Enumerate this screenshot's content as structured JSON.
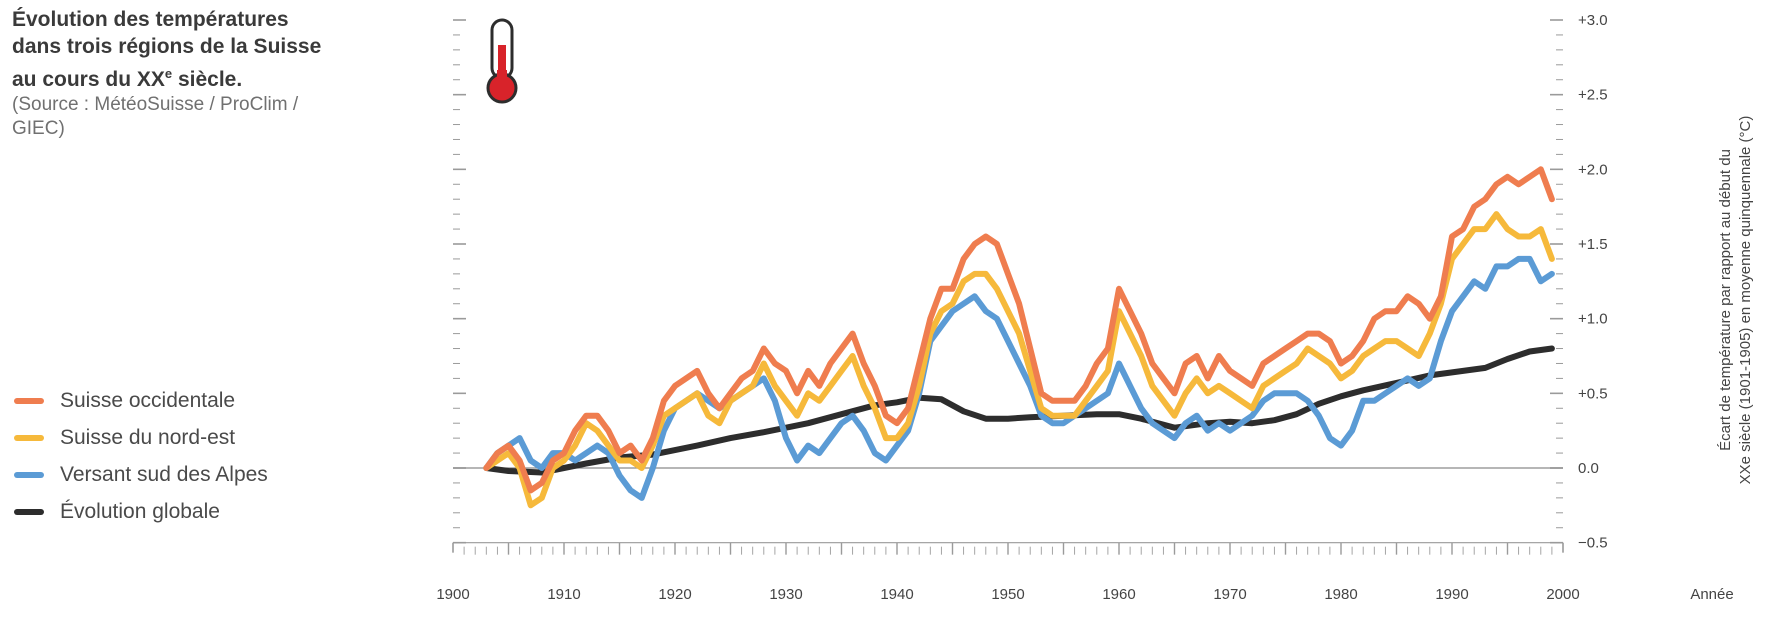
{
  "caption": {
    "title_line1": "Évolution des températures",
    "title_line2": "dans trois régions de la Suisse",
    "title_line3_pre": "au cours du XX",
    "title_line3_sup": "e",
    "title_line3_post": " siècle.",
    "source_line1": "(Source : MétéoSuisse / ProClim /",
    "source_line2": "GIEC)"
  },
  "colors": {
    "occidentale": "#ef7d4f",
    "nord_est": "#f6b93b",
    "sud_alpes": "#5b9bd5",
    "globale": "#2d2d2d",
    "axis": "#9a9a9a"
  },
  "icon": "thermometer-icon",
  "chart_data": {
    "type": "line",
    "title": "",
    "xlabel": "Année",
    "ylabel_line1": "Écart de température par rapport au début du",
    "ylabel_line2": "XXe siècle (1901-1905) en moyenne quinquennale (°C)",
    "xlim": [
      1900,
      2000
    ],
    "ylim": [
      -0.5,
      3.0
    ],
    "x_ticks": [
      1900,
      1910,
      1920,
      1930,
      1940,
      1950,
      1960,
      1970,
      1980,
      1990,
      2000
    ],
    "x_tick_labels": [
      "1900",
      "1910",
      "1920",
      "1930",
      "1940",
      "1950",
      "1960",
      "1970",
      "1980",
      "1990",
      "2000"
    ],
    "y_ticks": [
      -0.5,
      0.0,
      0.5,
      1.0,
      1.5,
      2.0,
      2.5,
      3.0
    ],
    "y_tick_labels": [
      "−0.5",
      "0.0",
      "+0.5",
      "+1.0",
      "+1.5",
      "+2.0",
      "+2.5",
      "+3.0"
    ],
    "legend_position": "bottom-left",
    "series": [
      {
        "name": "Suisse occidentale",
        "color": "#ef7d4f",
        "x": [
          1903,
          1904,
          1905,
          1906,
          1907,
          1908,
          1909,
          1910,
          1911,
          1912,
          1913,
          1914,
          1915,
          1916,
          1917,
          1918,
          1919,
          1920,
          1921,
          1922,
          1923,
          1924,
          1925,
          1926,
          1927,
          1928,
          1929,
          1930,
          1931,
          1932,
          1933,
          1934,
          1935,
          1936,
          1937,
          1938,
          1939,
          1940,
          1941,
          1942,
          1943,
          1944,
          1945,
          1946,
          1947,
          1948,
          1949,
          1950,
          1951,
          1952,
          1953,
          1954,
          1955,
          1956,
          1957,
          1958,
          1959,
          1960,
          1961,
          1962,
          1963,
          1964,
          1965,
          1966,
          1967,
          1968,
          1969,
          1970,
          1971,
          1972,
          1973,
          1974,
          1975,
          1976,
          1977,
          1978,
          1979,
          1980,
          1981,
          1982,
          1983,
          1984,
          1985,
          1986,
          1987,
          1988,
          1989,
          1990,
          1991,
          1992,
          1993,
          1994,
          1995,
          1996,
          1997,
          1998,
          1999
        ],
        "values": [
          0.0,
          0.1,
          0.15,
          0.05,
          -0.15,
          -0.1,
          0.05,
          0.1,
          0.25,
          0.35,
          0.35,
          0.25,
          0.1,
          0.15,
          0.05,
          0.2,
          0.45,
          0.55,
          0.6,
          0.65,
          0.5,
          0.4,
          0.5,
          0.6,
          0.65,
          0.8,
          0.7,
          0.65,
          0.5,
          0.65,
          0.55,
          0.7,
          0.8,
          0.9,
          0.7,
          0.55,
          0.35,
          0.3,
          0.4,
          0.7,
          1.0,
          1.2,
          1.2,
          1.4,
          1.5,
          1.55,
          1.5,
          1.3,
          1.1,
          0.8,
          0.5,
          0.45,
          0.45,
          0.45,
          0.55,
          0.7,
          0.8,
          1.2,
          1.05,
          0.9,
          0.7,
          0.6,
          0.5,
          0.7,
          0.75,
          0.6,
          0.75,
          0.65,
          0.6,
          0.55,
          0.7,
          0.75,
          0.8,
          0.85,
          0.9,
          0.9,
          0.85,
          0.7,
          0.75,
          0.85,
          1.0,
          1.05,
          1.05,
          1.15,
          1.1,
          1.0,
          1.15,
          1.55,
          1.6,
          1.75,
          1.8,
          1.9,
          1.95,
          1.9,
          1.95,
          2.0,
          1.8
        ]
      },
      {
        "name": "Suisse du nord-est",
        "color": "#f6b93b",
        "x": [
          1903,
          1904,
          1905,
          1906,
          1907,
          1908,
          1909,
          1910,
          1911,
          1912,
          1913,
          1914,
          1915,
          1916,
          1917,
          1918,
          1919,
          1920,
          1921,
          1922,
          1923,
          1924,
          1925,
          1926,
          1927,
          1928,
          1929,
          1930,
          1931,
          1932,
          1933,
          1934,
          1935,
          1936,
          1937,
          1938,
          1939,
          1940,
          1941,
          1942,
          1943,
          1944,
          1945,
          1946,
          1947,
          1948,
          1949,
          1950,
          1951,
          1952,
          1953,
          1954,
          1955,
          1956,
          1957,
          1958,
          1959,
          1960,
          1961,
          1962,
          1963,
          1964,
          1965,
          1966,
          1967,
          1968,
          1969,
          1970,
          1971,
          1972,
          1973,
          1974,
          1975,
          1976,
          1977,
          1978,
          1979,
          1980,
          1981,
          1982,
          1983,
          1984,
          1985,
          1986,
          1987,
          1988,
          1989,
          1990,
          1991,
          1992,
          1993,
          1994,
          1995,
          1996,
          1997,
          1998,
          1999
        ],
        "values": [
          0.0,
          0.05,
          0.1,
          0.0,
          -0.25,
          -0.2,
          0.0,
          0.05,
          0.15,
          0.3,
          0.25,
          0.15,
          0.05,
          0.05,
          0.0,
          0.15,
          0.35,
          0.4,
          0.45,
          0.5,
          0.35,
          0.3,
          0.45,
          0.5,
          0.55,
          0.7,
          0.55,
          0.45,
          0.35,
          0.5,
          0.45,
          0.55,
          0.65,
          0.75,
          0.55,
          0.4,
          0.2,
          0.2,
          0.3,
          0.55,
          0.9,
          1.05,
          1.1,
          1.25,
          1.3,
          1.3,
          1.2,
          1.05,
          0.9,
          0.65,
          0.4,
          0.35,
          0.35,
          0.35,
          0.45,
          0.55,
          0.65,
          1.05,
          0.9,
          0.75,
          0.55,
          0.45,
          0.35,
          0.5,
          0.6,
          0.5,
          0.55,
          0.5,
          0.45,
          0.4,
          0.55,
          0.6,
          0.65,
          0.7,
          0.8,
          0.75,
          0.7,
          0.6,
          0.65,
          0.75,
          0.8,
          0.85,
          0.85,
          0.8,
          0.75,
          0.9,
          1.1,
          1.4,
          1.5,
          1.6,
          1.6,
          1.7,
          1.6,
          1.55,
          1.55,
          1.6,
          1.4
        ]
      },
      {
        "name": "Versant sud des Alpes",
        "color": "#5b9bd5",
        "x": [
          1903,
          1904,
          1905,
          1906,
          1907,
          1908,
          1909,
          1910,
          1911,
          1912,
          1913,
          1914,
          1915,
          1916,
          1917,
          1918,
          1919,
          1920,
          1921,
          1922,
          1923,
          1924,
          1925,
          1926,
          1927,
          1928,
          1929,
          1930,
          1931,
          1932,
          1933,
          1934,
          1935,
          1936,
          1937,
          1938,
          1939,
          1940,
          1941,
          1942,
          1943,
          1944,
          1945,
          1946,
          1947,
          1948,
          1949,
          1950,
          1951,
          1952,
          1953,
          1954,
          1955,
          1956,
          1957,
          1958,
          1959,
          1960,
          1961,
          1962,
          1963,
          1964,
          1965,
          1966,
          1967,
          1968,
          1969,
          1970,
          1971,
          1972,
          1973,
          1974,
          1975,
          1976,
          1977,
          1978,
          1979,
          1980,
          1981,
          1982,
          1983,
          1984,
          1985,
          1986,
          1987,
          1988,
          1989,
          1990,
          1991,
          1992,
          1993,
          1994,
          1995,
          1996,
          1997,
          1998,
          1999
        ],
        "values": [
          0.0,
          0.1,
          0.15,
          0.2,
          0.05,
          0.0,
          0.1,
          0.1,
          0.05,
          0.1,
          0.15,
          0.1,
          -0.05,
          -0.15,
          -0.2,
          0.0,
          0.25,
          0.4,
          0.45,
          0.5,
          0.45,
          0.4,
          0.45,
          0.5,
          0.55,
          0.6,
          0.45,
          0.2,
          0.05,
          0.15,
          0.1,
          0.2,
          0.3,
          0.35,
          0.25,
          0.1,
          0.05,
          0.15,
          0.25,
          0.5,
          0.85,
          0.95,
          1.05,
          1.1,
          1.15,
          1.05,
          1.0,
          0.85,
          0.7,
          0.55,
          0.35,
          0.3,
          0.3,
          0.35,
          0.4,
          0.45,
          0.5,
          0.7,
          0.55,
          0.4,
          0.3,
          0.25,
          0.2,
          0.3,
          0.35,
          0.25,
          0.3,
          0.25,
          0.3,
          0.35,
          0.45,
          0.5,
          0.5,
          0.5,
          0.45,
          0.35,
          0.2,
          0.15,
          0.25,
          0.45,
          0.45,
          0.5,
          0.55,
          0.6,
          0.55,
          0.6,
          0.85,
          1.05,
          1.15,
          1.25,
          1.2,
          1.35,
          1.35,
          1.4,
          1.4,
          1.25,
          1.3
        ]
      },
      {
        "name": "Évolution globale",
        "color": "#2d2d2d",
        "x": [
          1903,
          1905,
          1908,
          1910,
          1912,
          1915,
          1918,
          1920,
          1922,
          1925,
          1928,
          1930,
          1932,
          1935,
          1938,
          1940,
          1942,
          1944,
          1946,
          1948,
          1950,
          1952,
          1955,
          1958,
          1960,
          1962,
          1965,
          1968,
          1970,
          1972,
          1974,
          1976,
          1978,
          1980,
          1982,
          1985,
          1988,
          1990,
          1993,
          1995,
          1997,
          1999
        ],
        "values": [
          0.0,
          -0.02,
          -0.03,
          0.0,
          0.03,
          0.07,
          0.09,
          0.12,
          0.15,
          0.2,
          0.24,
          0.27,
          0.3,
          0.36,
          0.42,
          0.44,
          0.47,
          0.46,
          0.38,
          0.33,
          0.33,
          0.34,
          0.35,
          0.36,
          0.36,
          0.33,
          0.27,
          0.3,
          0.31,
          0.3,
          0.32,
          0.36,
          0.43,
          0.48,
          0.52,
          0.57,
          0.62,
          0.64,
          0.67,
          0.73,
          0.78,
          0.8
        ]
      }
    ]
  }
}
